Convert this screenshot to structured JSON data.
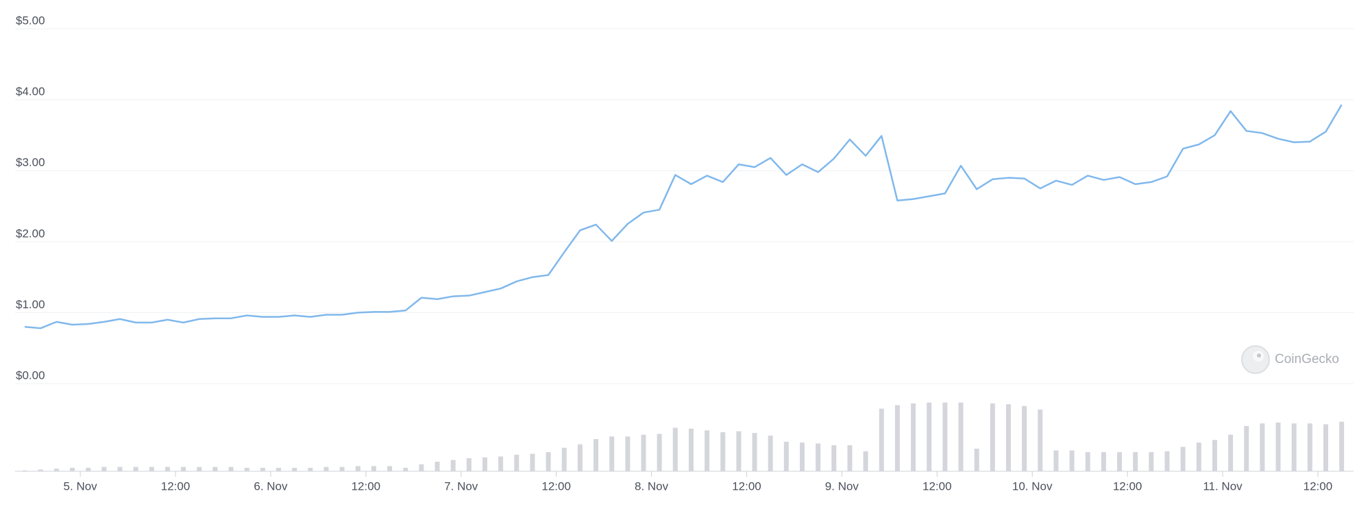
{
  "chart_data": {
    "type": "line",
    "x": [
      -7,
      -5,
      -3,
      -1,
      1,
      3,
      5,
      7,
      9,
      11,
      13,
      15,
      17,
      19,
      21,
      23,
      25,
      27,
      29,
      31,
      33,
      35,
      37,
      39,
      41,
      43,
      45,
      47,
      49,
      51,
      53,
      55,
      57,
      59,
      61,
      63,
      65,
      67,
      69,
      71,
      73,
      75,
      77,
      79,
      81,
      83,
      85,
      87,
      89,
      91,
      93,
      95,
      97,
      99,
      101,
      103,
      105,
      107,
      109,
      111,
      113,
      115,
      117,
      119,
      121,
      123,
      125,
      127,
      129,
      131,
      133,
      135,
      137,
      139,
      141,
      143,
      145,
      147,
      149,
      151,
      153,
      155,
      157,
      159
    ],
    "series": [
      {
        "color": "#80b8ec",
        "values": [
          0.8,
          0.78,
          0.87,
          0.83,
          0.84,
          0.87,
          0.91,
          0.86,
          0.86,
          0.9,
          0.86,
          0.91,
          0.92,
          0.92,
          0.96,
          0.94,
          0.94,
          0.96,
          0.94,
          0.97,
          0.97,
          1.0,
          1.01,
          1.01,
          1.03,
          1.21,
          1.19,
          1.23,
          1.24,
          1.29,
          1.34,
          1.44,
          1.5,
          1.53,
          1.85,
          2.16,
          2.24,
          2.01,
          2.25,
          2.41,
          2.45,
          2.94,
          2.81,
          2.93,
          2.84,
          3.09,
          3.05,
          3.18,
          2.94,
          3.09,
          2.98,
          3.17,
          3.44,
          3.21,
          3.49,
          2.58,
          2.6,
          2.64,
          2.68,
          3.07,
          2.74,
          2.88,
          2.9,
          2.89,
          2.75,
          2.86,
          2.8,
          2.93,
          2.87,
          2.91,
          2.81,
          2.84,
          2.92,
          3.31,
          3.37,
          3.5,
          3.84,
          3.56,
          3.53,
          3.45,
          3.4,
          3.41,
          3.55,
          3.93
        ]
      }
    ],
    "volume": {
      "color": "#d4d6db",
      "lim": [
        0,
        100
      ],
      "values": [
        1,
        2,
        3,
        4,
        4,
        5,
        5,
        5,
        5,
        5,
        5,
        5,
        5,
        5,
        4,
        4,
        4,
        4,
        4,
        5,
        5,
        6,
        6,
        6,
        4,
        8,
        11,
        13,
        15,
        16,
        17,
        19,
        20,
        22,
        27,
        31,
        37,
        40,
        40,
        42,
        43,
        50,
        49,
        47,
        45,
        46,
        44,
        41,
        34,
        33,
        32,
        30,
        30,
        23,
        72,
        76,
        78,
        79,
        79,
        79,
        26,
        78,
        77,
        75,
        71,
        24,
        24,
        22,
        22,
        22,
        22,
        22,
        23,
        28,
        33,
        36,
        42,
        52,
        55,
        56,
        55,
        55,
        54,
        57
      ]
    },
    "xlim": [
      -7.7,
      160.5
    ],
    "xticks": [
      {
        "value": 0,
        "label": "5. Nov"
      },
      {
        "value": 12,
        "label": "12:00"
      },
      {
        "value": 24,
        "label": "6. Nov"
      },
      {
        "value": 36,
        "label": "12:00"
      },
      {
        "value": 48,
        "label": "7. Nov"
      },
      {
        "value": 60,
        "label": "12:00"
      },
      {
        "value": 72,
        "label": "8. Nov"
      },
      {
        "value": 84,
        "label": "12:00"
      },
      {
        "value": 96,
        "label": "9. Nov"
      },
      {
        "value": 108,
        "label": "12:00"
      },
      {
        "value": 120,
        "label": "10. Nov"
      },
      {
        "value": 132,
        "label": "12:00"
      },
      {
        "value": 144,
        "label": "11. Nov"
      },
      {
        "value": 156,
        "label": "12:00"
      }
    ],
    "ylim": [
      0,
      5
    ],
    "yticks": [
      {
        "value": 0,
        "label": "$0.00"
      },
      {
        "value": 1,
        "label": "$1.00"
      },
      {
        "value": 2,
        "label": "$2.00"
      },
      {
        "value": 3,
        "label": "$3.00"
      },
      {
        "value": 4,
        "label": "$4.00"
      },
      {
        "value": 5,
        "label": "$5.00"
      }
    ],
    "grid": true,
    "watermark": "CoinGecko"
  }
}
